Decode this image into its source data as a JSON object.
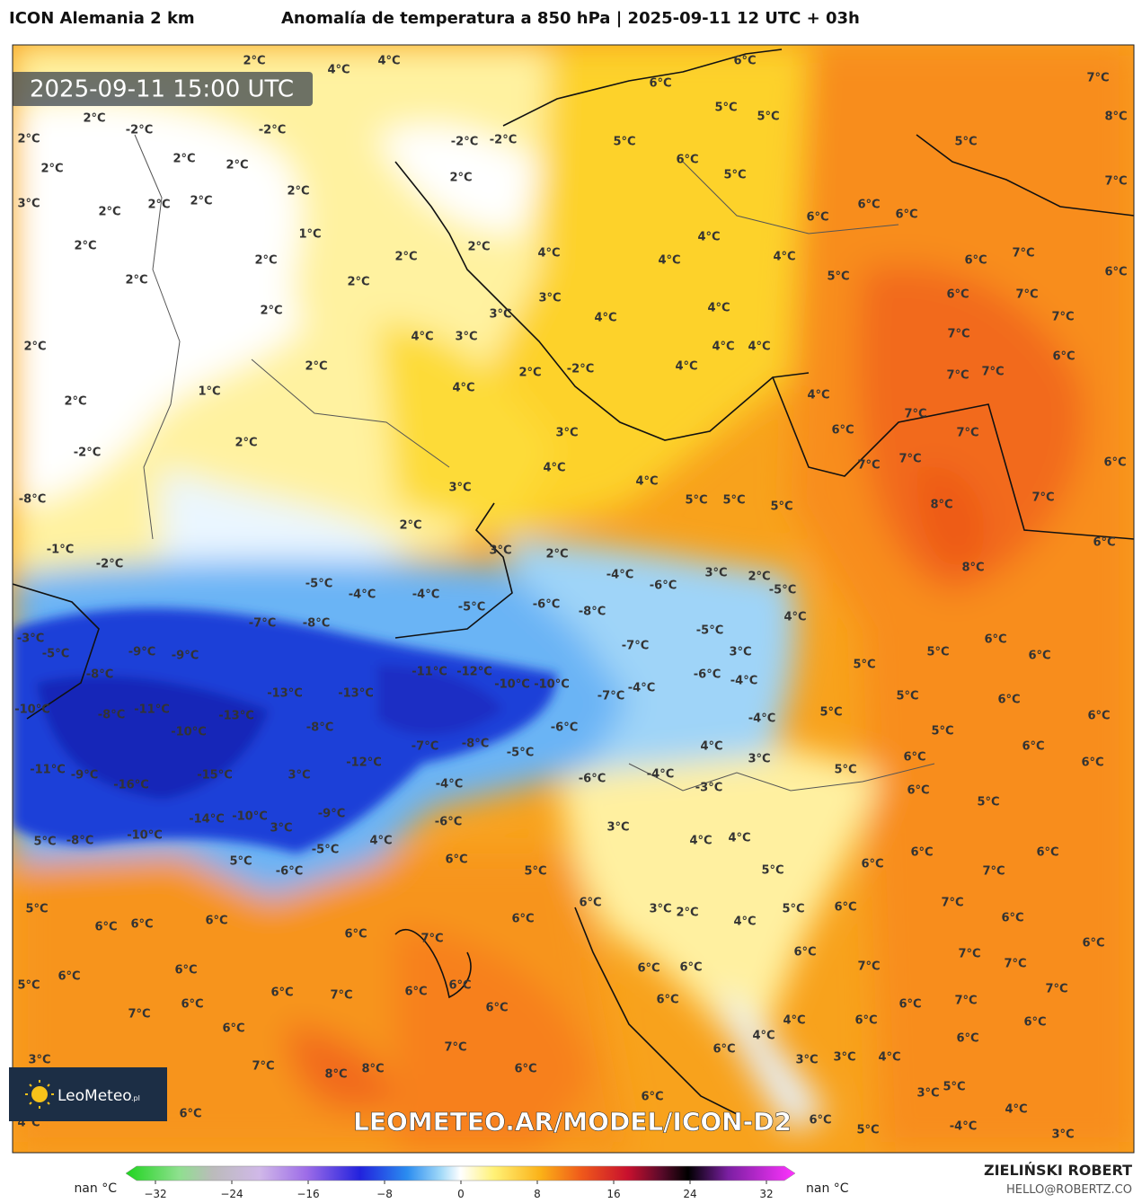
{
  "header": {
    "model": "ICON Alemania 2 km",
    "title": "Anomalía de temperatura a 850 hPa | 2025-09-11 12 UTC + 03h"
  },
  "map": {
    "timestamp": "2025-09-11 15:00 UTC",
    "watermark": "LEOMETEO.AR/MODEL/ICON-D2",
    "logo": "LeoMeteo",
    "logo_suffix": ".pl",
    "labels": [
      "2°C",
      "4°C",
      "4°C",
      "6°C",
      "7°C",
      "8°C",
      "-2°C",
      "-2°C",
      "2°C",
      "2°C",
      "-2°C",
      "-2°C",
      "5°C",
      "5°C",
      "6°C",
      "5°C",
      "5°C",
      "6°C",
      "2°C",
      "2°C",
      "2°C",
      "2°C",
      "5°C",
      "7°C",
      "3°C",
      "2°C",
      "2°C",
      "2°C",
      "2°C",
      "6°C",
      "6°C",
      "6°C",
      "1°C",
      "2°C",
      "2°C",
      "4°C",
      "4°C",
      "4°C",
      "4°C",
      "2°C",
      "2°C",
      "6°C",
      "7°C",
      "6°C",
      "2°C",
      "2°C",
      "5°C",
      "3°C",
      "6°C",
      "7°C",
      "2°C",
      "4°C",
      "4°C",
      "3°C",
      "7°C",
      "2°C",
      "4°C",
      "3°C",
      "4°C",
      "4°C",
      "7°C",
      "6°C",
      "2°C",
      "2°C",
      "-2°C",
      "4°C",
      "7°C",
      "7°C",
      "1°C",
      "4°C",
      "4°C",
      "2°C",
      "7°C",
      "3°C",
      "6°C",
      "7°C",
      "2°C",
      "-2°C",
      "4°C",
      "7°C",
      "7°C",
      "6°C",
      "4°C",
      "3°C",
      "5°C",
      "5°C",
      "5°C",
      "7°C",
      "-8°C",
      "8°C",
      "2°C",
      "6°C",
      "3°C",
      "2°C",
      "-1°C",
      "-2°C",
      "8°C",
      "-4°C",
      "3°C",
      "2°C",
      "-5°C",
      "-6°C",
      "-5°C",
      "-4°C",
      "-4°C",
      "-5°C",
      "-6°C",
      "-8°C",
      "4°C",
      "-7°C",
      "-8°C",
      "-5°C",
      "6°C",
      "-3°C",
      "5°C",
      "-5°C",
      "-9°C",
      "-9°C",
      "-7°C",
      "3°C",
      "6°C",
      "5°C",
      "-11°C",
      "-12°C",
      "-8°C",
      "-6°C",
      "-10°C",
      "-10°C",
      "-4°C",
      "-7°C",
      "-4°C",
      "5°C",
      "6°C",
      "-13°C",
      "-13°C",
      "-10°C",
      "-8°C",
      "-11°C",
      "-13°C",
      "-4°C",
      "5°C",
      "6°C",
      "5°C",
      "-6°C",
      "-10°C",
      "-8°C",
      "-7°C",
      "-8°C",
      "4°C",
      "-5°C",
      "6°C",
      "3°C",
      "-12°C",
      "-11°C",
      "-9°C",
      "-15°C",
      "3°C",
      "5°C",
      "6°C",
      "6°C",
      "-4°C",
      "-6°C",
      "-16°C",
      "-4°C",
      "6°C",
      "-3°C",
      "5°C",
      "-14°C",
      "-10°C",
      "-9°C",
      "-6°C",
      "3°C",
      "3°C",
      "-10°C",
      "5°C",
      "-8°C",
      "4°C",
      "-5°C",
      "4°C",
      "4°C",
      "6°C",
      "6°C",
      "6°C",
      "5°C",
      "-6°C",
      "5°C",
      "5°C",
      "6°C",
      "7°C",
      "5°C",
      "6°C",
      "7°C",
      "6°C",
      "6°C",
      "6°C",
      "6°C",
      "3°C",
      "2°C",
      "4°C",
      "5°C",
      "6°C",
      "6°C",
      "6°C",
      "7°C",
      "6°C",
      "6°C",
      "6°C",
      "6°C",
      "7°C",
      "7°C",
      "7°C",
      "6°C",
      "6°C",
      "5°C",
      "6°C",
      "7°C",
      "6°C",
      "7°C",
      "6°C",
      "6°C",
      "6°C",
      "6°C",
      "6°C",
      "7°C",
      "7°C",
      "4°C",
      "6°C",
      "6°C",
      "6°C",
      "6°C",
      "4°C",
      "6°C",
      "7°C",
      "3°C",
      "3°C",
      "4°C",
      "3°C",
      "7°C",
      "8°C",
      "8°C",
      "6°C",
      "5°C",
      "3°C",
      "4°C",
      "6°C",
      "6°C",
      "4°C",
      "6°C",
      "5°C",
      "-4°C",
      "3°C"
    ]
  },
  "colorbar": {
    "left_label": "nan °C",
    "right_label": "nan °C",
    "ticks": [
      {
        "value": -32,
        "label": "−32"
      },
      {
        "value": -24,
        "label": "−24"
      },
      {
        "value": -16,
        "label": "−16"
      },
      {
        "value": -8,
        "label": "−8"
      },
      0,
      8,
      16,
      24,
      32
    ]
  },
  "footer": {
    "author": "ZIELIŃSKI ROBERT",
    "email": "HELLO@ROBERTZ.CO"
  }
}
